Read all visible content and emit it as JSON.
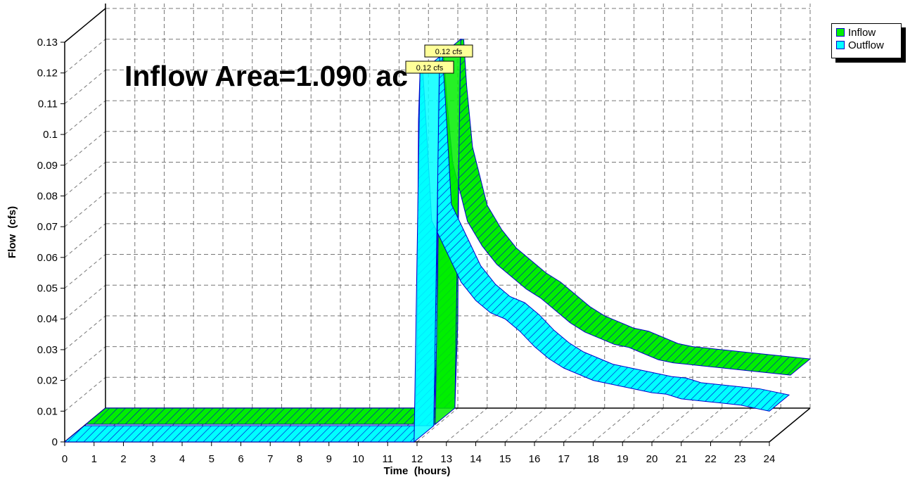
{
  "chart_data": {
    "type": "area",
    "title": "Inflow Area=1.090 ac",
    "xlabel": "Time  (hours)",
    "ylabel": "Flow  (cfs)",
    "xlim": [
      0,
      24
    ],
    "ylim": [
      0,
      0.13
    ],
    "x_ticks": [
      "0",
      "1",
      "2",
      "3",
      "4",
      "5",
      "6",
      "7",
      "8",
      "9",
      "10",
      "11",
      "12",
      "13",
      "14",
      "15",
      "16",
      "17",
      "18",
      "19",
      "20",
      "21",
      "22",
      "23",
      "24"
    ],
    "y_ticks": [
      "0",
      "0.01",
      "0.02",
      "0.03",
      "0.04",
      "0.05",
      "0.06",
      "0.07",
      "0.08",
      "0.09",
      "0.1",
      "0.11",
      "0.12",
      "0.13"
    ],
    "grid": true,
    "legend_position": "top-right",
    "series": [
      {
        "name": "Inflow",
        "color": "#00ee00",
        "peak_label": "0.12 cfs",
        "x": [
          0,
          11.9,
          12.0,
          12.05,
          12.1,
          12.2,
          12.3,
          12.5,
          13,
          13.5,
          14,
          14.5,
          15,
          15.5,
          16,
          16.5,
          17,
          17.5,
          18,
          18.5,
          19,
          19.5,
          20,
          20.5,
          21,
          22,
          23,
          24
        ],
        "y": [
          0,
          0,
          0.028,
          0.105,
          0.12,
          0.12,
          0.105,
          0.085,
          0.066,
          0.058,
          0.052,
          0.048,
          0.044,
          0.041,
          0.037,
          0.033,
          0.03,
          0.028,
          0.026,
          0.025,
          0.023,
          0.021,
          0.02,
          0.0195,
          0.019,
          0.018,
          0.017,
          0.016
        ]
      },
      {
        "name": "Outflow",
        "color": "#00ffff",
        "peak_label": "0.12 cfs",
        "x": [
          0,
          11.9,
          12.0,
          12.05,
          12.1,
          12.2,
          12.3,
          12.5,
          13,
          13.5,
          14,
          14.5,
          15,
          15.5,
          16,
          16.5,
          17,
          17.5,
          18,
          18.5,
          19,
          19.5,
          20,
          20.5,
          21,
          22,
          23,
          24
        ],
        "y": [
          0,
          0,
          0.028,
          0.105,
          0.12,
          0.12,
          0.105,
          0.072,
          0.062,
          0.052,
          0.046,
          0.042,
          0.04,
          0.036,
          0.031,
          0.027,
          0.024,
          0.022,
          0.02,
          0.019,
          0.018,
          0.017,
          0.016,
          0.0155,
          0.014,
          0.013,
          0.012,
          0.01
        ]
      }
    ]
  }
}
